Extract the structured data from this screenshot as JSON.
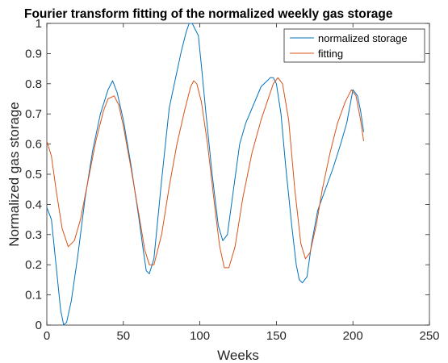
{
  "chart_data": {
    "type": "line",
    "title": "Fourier transform fitting of the normalized weekly gas storage",
    "xlabel": "Weeks",
    "ylabel": "Normalized gas storage",
    "xlim": [
      0,
      250
    ],
    "ylim": [
      0,
      1
    ],
    "xticks": [
      0,
      50,
      100,
      150,
      200,
      250
    ],
    "yticks": [
      0,
      0.1,
      0.2,
      0.3,
      0.4,
      0.5,
      0.6,
      0.7,
      0.8,
      0.9,
      1
    ],
    "grid": false,
    "legend_position": "top-right",
    "series": [
      {
        "name": "normalized storage",
        "color": "#0072BD",
        "x": [
          0,
          3,
          6,
          9,
          11,
          13,
          16,
          20,
          25,
          30,
          35,
          40,
          43,
          46,
          50,
          55,
          60,
          63,
          65,
          67,
          70,
          75,
          80,
          85,
          88,
          91,
          93,
          95,
          97,
          99,
          101,
          104,
          108,
          112,
          115,
          118,
          122,
          126,
          130,
          135,
          140,
          144,
          146,
          148,
          150,
          153,
          156,
          160,
          163,
          165,
          167,
          170,
          173,
          177,
          182,
          187,
          192,
          196,
          200,
          203,
          205,
          207
        ],
        "y": [
          0.39,
          0.35,
          0.2,
          0.05,
          0.0,
          0.01,
          0.08,
          0.22,
          0.42,
          0.58,
          0.7,
          0.78,
          0.81,
          0.77,
          0.68,
          0.53,
          0.36,
          0.25,
          0.18,
          0.17,
          0.22,
          0.48,
          0.72,
          0.84,
          0.91,
          0.97,
          1.0,
          1.0,
          0.98,
          0.96,
          0.86,
          0.7,
          0.5,
          0.33,
          0.28,
          0.3,
          0.45,
          0.6,
          0.67,
          0.73,
          0.79,
          0.81,
          0.82,
          0.82,
          0.8,
          0.7,
          0.53,
          0.33,
          0.2,
          0.15,
          0.14,
          0.16,
          0.27,
          0.38,
          0.45,
          0.52,
          0.6,
          0.67,
          0.78,
          0.76,
          0.71,
          0.64
        ]
      },
      {
        "name": "fitting",
        "color": "#D95319",
        "x": [
          0,
          3,
          6,
          10,
          14,
          18,
          22,
          27,
          32,
          37,
          40,
          44,
          47,
          50,
          55,
          60,
          64,
          67,
          70,
          75,
          80,
          85,
          90,
          94,
          96,
          98,
          101,
          105,
          110,
          113,
          116,
          119,
          123,
          128,
          134,
          140,
          144,
          148,
          151,
          154,
          158,
          162,
          166,
          169,
          172,
          176,
          180,
          185,
          190,
          195,
          199,
          202,
          205,
          207
        ],
        "y": [
          0.61,
          0.56,
          0.45,
          0.32,
          0.26,
          0.28,
          0.35,
          0.48,
          0.61,
          0.71,
          0.75,
          0.76,
          0.73,
          0.66,
          0.52,
          0.37,
          0.25,
          0.2,
          0.2,
          0.3,
          0.46,
          0.6,
          0.71,
          0.79,
          0.81,
          0.8,
          0.74,
          0.6,
          0.38,
          0.26,
          0.19,
          0.19,
          0.26,
          0.42,
          0.57,
          0.68,
          0.74,
          0.8,
          0.82,
          0.8,
          0.68,
          0.45,
          0.27,
          0.22,
          0.24,
          0.33,
          0.45,
          0.57,
          0.67,
          0.74,
          0.78,
          0.76,
          0.68,
          0.61
        ]
      }
    ]
  }
}
